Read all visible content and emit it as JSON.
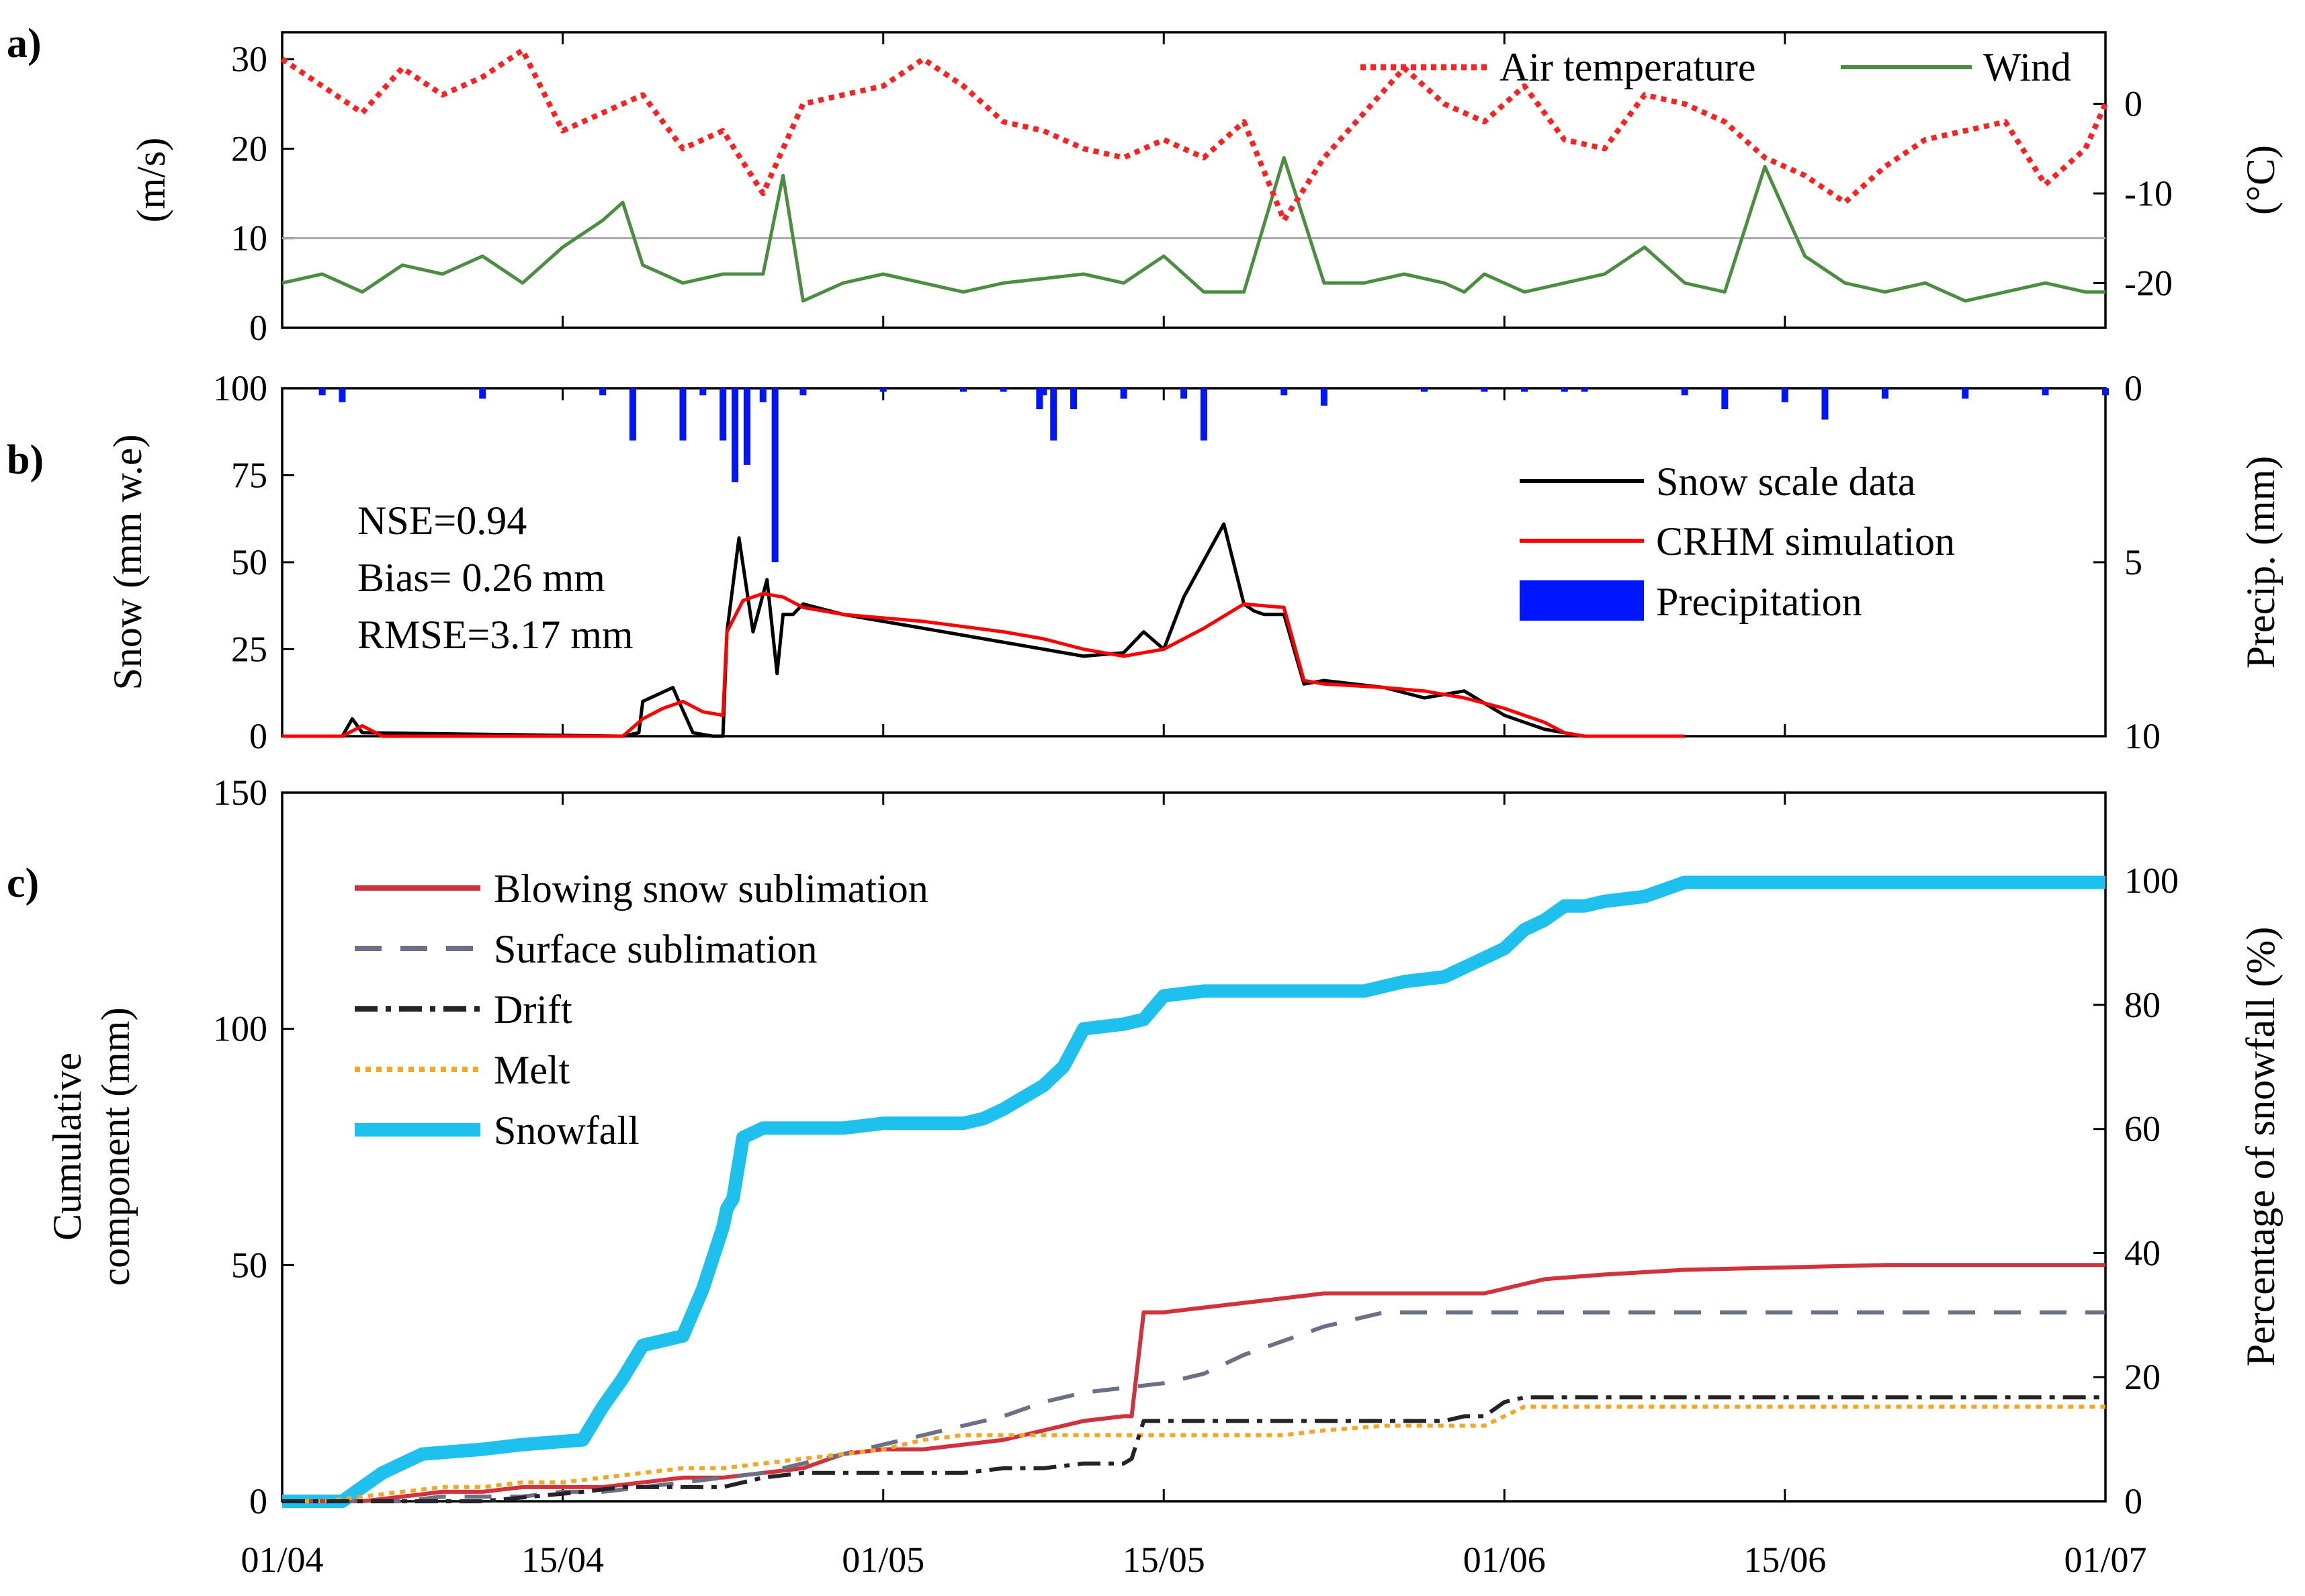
{
  "chart_data": [
    {
      "id": "a",
      "panel_label": "a)",
      "type": "line",
      "ylabel": "(m/s)",
      "y2label": "(°C)",
      "ylim": [
        0,
        33
      ],
      "y2lim": [
        -25,
        8
      ],
      "yticks": [
        "0",
        "10",
        "20",
        "30"
      ],
      "y2ticks": [
        "-20",
        "-10",
        "0"
      ],
      "reference_line_y": 10,
      "legend_location": "top-right",
      "series": [
        {
          "name": "Air temperature",
          "axis": "right",
          "style": "dotted",
          "color": "#ff2020",
          "x": [
            0,
            2,
            4,
            6,
            8,
            10,
            12,
            14,
            16,
            18,
            20,
            22,
            24,
            26,
            28,
            30,
            32,
            34,
            36,
            38,
            40,
            42,
            44,
            46,
            48,
            50,
            52,
            54,
            56,
            58,
            60,
            62,
            64,
            66,
            68,
            70,
            72,
            74,
            76,
            78,
            80,
            82,
            84,
            86,
            88,
            90,
            91
          ],
          "values": [
            5,
            2,
            -1,
            4,
            1,
            3,
            6,
            -3,
            -1,
            1,
            -5,
            -3,
            -10,
            0,
            1,
            2,
            5,
            2,
            -2,
            -3,
            -5,
            -6,
            -4,
            -6,
            -2,
            -13,
            -6,
            -1,
            4,
            0,
            -2,
            2,
            -4,
            -5,
            1,
            0,
            -2,
            -6,
            -8,
            -11,
            -7,
            -4,
            -3,
            -2,
            -9,
            -5,
            0
          ]
        },
        {
          "name": "Wind",
          "axis": "left",
          "style": "solid",
          "color": "#4a8f3f",
          "x": [
            0,
            2,
            4,
            6,
            8,
            10,
            12,
            14,
            16,
            17,
            18,
            20,
            22,
            24,
            25,
            26,
            28,
            30,
            32,
            34,
            36,
            40,
            42,
            44,
            46,
            48,
            50,
            52,
            54,
            56,
            58,
            59,
            60,
            62,
            64,
            66,
            68,
            70,
            72,
            74,
            76,
            78,
            80,
            82,
            84,
            86,
            88,
            90,
            91
          ],
          "values": [
            5,
            6,
            4,
            7,
            6,
            8,
            5,
            9,
            12,
            14,
            7,
            5,
            6,
            6,
            17,
            3,
            5,
            6,
            5,
            4,
            5,
            6,
            5,
            8,
            4,
            4,
            19,
            5,
            5,
            6,
            5,
            4,
            6,
            4,
            5,
            6,
            9,
            5,
            4,
            18,
            8,
            5,
            4,
            5,
            3,
            4,
            5,
            4,
            4
          ]
        }
      ],
      "labels": [
        "Air temperature",
        "Wind"
      ]
    },
    {
      "id": "b",
      "panel_label": "b)",
      "type": "line",
      "ylabel": "Snow (mm w.e)",
      "y2label": "Precip. (mm)",
      "ylim": [
        0,
        100
      ],
      "y2lim_inverted": [
        0,
        10
      ],
      "yticks": [
        "0",
        "25",
        "50",
        "75",
        "100"
      ],
      "y2ticks": [
        "0",
        "5",
        "10"
      ],
      "stats": [
        "NSE=0.94",
        "Bias= 0.26 mm",
        "RMSE=3.17 mm"
      ],
      "legend_location": "top-right",
      "labels": [
        "Snow scale data",
        "CRHM simulation",
        "Precipitation"
      ],
      "series": [
        {
          "name": "Snow scale data",
          "color": "#000000",
          "x": [
            0,
            3,
            3.5,
            4,
            17,
            17.8,
            18,
            19.5,
            19.8,
            20.5,
            21.5,
            22,
            22.2,
            22.8,
            23.5,
            24.2,
            24.7,
            25,
            25.5,
            26,
            28,
            32,
            36,
            38,
            40,
            42,
            43,
            44,
            45,
            47,
            48,
            48.5,
            49,
            50,
            51,
            52,
            55,
            57,
            59,
            61,
            62,
            63,
            64,
            65,
            70
          ],
          "values": [
            0,
            0,
            5,
            1,
            0,
            1,
            10,
            14,
            10,
            1,
            0,
            0,
            30,
            57,
            30,
            45,
            18,
            35,
            35,
            38,
            35,
            31,
            27,
            25,
            23,
            24,
            30,
            25,
            40,
            61,
            38,
            36,
            35,
            35,
            15,
            16,
            14,
            11,
            13,
            6,
            4,
            2,
            1,
            0,
            0
          ]
        },
        {
          "name": "CRHM simulation",
          "color": "#ff0000",
          "x": [
            0,
            3,
            4,
            5,
            17,
            18,
            19,
            20,
            21,
            22,
            22.2,
            23,
            24,
            25,
            26,
            28,
            32,
            36,
            38,
            40,
            42,
            44,
            46,
            48,
            50,
            51,
            52,
            55,
            57,
            59,
            61,
            63,
            64,
            65,
            66,
            70
          ],
          "values": [
            0,
            0,
            3,
            0,
            0,
            5,
            8,
            10,
            7,
            6,
            30,
            39,
            41,
            40,
            37,
            35,
            33,
            30,
            28,
            25,
            23,
            25,
            31,
            38,
            37,
            16,
            15,
            14,
            13,
            11,
            8,
            4,
            1,
            0,
            0,
            0
          ]
        },
        {
          "name": "Precipitation",
          "type": "bar",
          "color": "#0015ff",
          "x": [
            2,
            3,
            10,
            16,
            17.5,
            20,
            21,
            22,
            22.6,
            23.2,
            24,
            24.6,
            26,
            30,
            34,
            36,
            38,
            37.8,
            38.5,
            39.5,
            42,
            45,
            46,
            50,
            52,
            57,
            60,
            62,
            64,
            65,
            70,
            72,
            75,
            77,
            80,
            84,
            88,
            91
          ],
          "values": [
            0.2,
            0.4,
            0.3,
            0.2,
            1.5,
            1.5,
            0.2,
            1.5,
            2.7,
            2.2,
            0.4,
            5.0,
            0.2,
            0.1,
            0.1,
            0.1,
            0.2,
            0.6,
            1.5,
            0.6,
            0.3,
            0.3,
            1.5,
            0.2,
            0.5,
            0.1,
            0.1,
            0.1,
            0.1,
            0.1,
            0.2,
            0.6,
            0.4,
            0.9,
            0.3,
            0.3,
            0.2,
            0.2
          ]
        }
      ]
    },
    {
      "id": "c",
      "panel_label": "c)",
      "type": "line",
      "ylabel_lines": [
        "Cumulative",
        "component (mm)"
      ],
      "y2label": "Percentage of snowfall (%)",
      "ylim": [
        0,
        150
      ],
      "y2lim": [
        0,
        114.2
      ],
      "yticks": [
        "0",
        "50",
        "100",
        "150"
      ],
      "y2ticks": [
        "0",
        "20",
        "40",
        "60",
        "80",
        "100"
      ],
      "xlim": [
        0,
        91
      ],
      "xticks": [
        "01/04",
        "15/04",
        "01/05",
        "15/05",
        "01/06",
        "15/06",
        "01/07"
      ],
      "xtick_days": [
        0,
        14,
        30,
        44,
        61,
        75,
        91
      ],
      "legend_location": "top-left",
      "labels": [
        "Blowing snow sublimation",
        "Surface sublimation",
        "Drift",
        "Melt",
        "Snowfall"
      ],
      "series": [
        {
          "name": "Blowing snow sublimation",
          "color": "#d0333b",
          "style": "solid",
          "x": [
            0,
            2,
            4,
            6,
            8,
            10,
            12,
            14,
            16,
            18,
            20,
            22,
            24,
            26,
            28,
            30,
            32,
            34,
            36,
            38,
            40,
            42,
            42.4,
            43,
            44,
            46,
            48,
            50,
            52,
            54,
            56,
            58,
            60,
            61,
            63,
            66,
            70,
            80,
            91
          ],
          "values": [
            0,
            0,
            0,
            1,
            2,
            2,
            3,
            3,
            3,
            4,
            5,
            5,
            6,
            7,
            10,
            11,
            11,
            12,
            13,
            15,
            17,
            18,
            18,
            40,
            40,
            41,
            42,
            43,
            44,
            44,
            44,
            44,
            44,
            45,
            47,
            48,
            49,
            50,
            50
          ]
        },
        {
          "name": "Surface sublimation",
          "color": "#6b7085",
          "style": "dashed",
          "x": [
            0,
            2,
            4,
            6,
            8,
            10,
            12,
            14,
            16,
            18,
            20,
            22,
            24,
            26,
            28,
            30,
            32,
            34,
            36,
            38,
            40,
            42,
            44,
            46,
            48,
            50,
            52,
            54,
            55,
            56,
            58,
            60,
            70,
            80,
            91
          ],
          "values": [
            0,
            0,
            0,
            0,
            1,
            1,
            1,
            2,
            2,
            3,
            4,
            5,
            6,
            8,
            10,
            12,
            14,
            16,
            18,
            21,
            23,
            24,
            25,
            27,
            31,
            34,
            37,
            39,
            40,
            40,
            40,
            40,
            40,
            40,
            40
          ]
        },
        {
          "name": "Drift",
          "color": "#232329",
          "style": "dashdot",
          "x": [
            0,
            10,
            15,
            17,
            20,
            22,
            24,
            26,
            28,
            30,
            32,
            34,
            36,
            38,
            40,
            42,
            42.4,
            43,
            46,
            50,
            54,
            58,
            59,
            60,
            61,
            62,
            63,
            66,
            70,
            80,
            91
          ],
          "values": [
            0,
            0,
            2,
            3,
            3,
            3,
            5,
            6,
            6,
            6,
            6,
            6,
            7,
            7,
            8,
            8,
            9,
            17,
            17,
            17,
            17,
            17,
            18,
            18,
            21,
            22,
            22,
            22,
            22,
            22,
            22
          ]
        },
        {
          "name": "Melt",
          "color": "#f5a623",
          "style": "dotted",
          "x": [
            0,
            2,
            4,
            6,
            8,
            10,
            12,
            14,
            16,
            18,
            20,
            22,
            24,
            26,
            28,
            30,
            32,
            34,
            36,
            38,
            40,
            42,
            44,
            46,
            48,
            50,
            52,
            55,
            58,
            60,
            61,
            62,
            70,
            80,
            91
          ],
          "values": [
            0,
            0,
            1,
            2,
            3,
            3,
            4,
            4,
            5,
            6,
            7,
            7,
            8,
            9,
            10,
            11,
            13,
            14,
            14,
            14,
            14,
            14,
            14,
            14,
            14,
            14,
            15,
            16,
            16,
            16,
            18,
            20,
            20,
            20,
            20
          ]
        },
        {
          "name": "Snowfall",
          "color": "#1ec0ee",
          "style": "solid-thick",
          "x": [
            0,
            2,
            3,
            5,
            6,
            7,
            10,
            12,
            15,
            16,
            17,
            18,
            20,
            21,
            22,
            22.2,
            22.5,
            23,
            24,
            25,
            26,
            28,
            30,
            32,
            34,
            35,
            36,
            38,
            39,
            40,
            42,
            43,
            44,
            46,
            48,
            50,
            52,
            54,
            55,
            56,
            58,
            60,
            61,
            62,
            63,
            64,
            65,
            66,
            68,
            70,
            75,
            80,
            85,
            91
          ],
          "values": [
            0,
            0,
            0,
            6,
            8,
            10,
            11,
            12,
            13,
            20,
            26,
            33,
            35,
            45,
            58,
            62,
            64,
            77,
            79,
            79,
            79,
            79,
            80,
            80,
            80,
            81,
            83,
            88,
            92,
            100,
            101,
            102,
            107,
            108,
            108,
            108,
            108,
            108,
            109,
            110,
            111,
            115,
            117,
            121,
            123,
            126,
            126,
            127,
            128,
            131,
            131,
            131,
            131,
            131
          ]
        }
      ]
    }
  ]
}
